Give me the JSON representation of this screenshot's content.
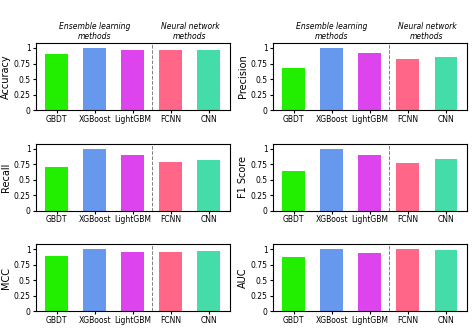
{
  "chart_data": [
    {
      "type": "bar",
      "ylabel": "Accuracy",
      "categories": [
        "GBDT",
        "XGBoost",
        "LightGBM",
        "FCNN",
        "CNN"
      ],
      "values": [
        0.91,
        1.0,
        0.97,
        0.96,
        0.97
      ],
      "colors": [
        "#22ee00",
        "#6699ee",
        "#dd44ee",
        "#ff6688",
        "#44ddaa"
      ],
      "ylim": [
        0,
        1.08
      ],
      "yticks": [
        0,
        0.25,
        0.5,
        0.75,
        1
      ],
      "annotations": [
        "Ensemble learning\nmethods",
        "Neural network\nmethods"
      ]
    },
    {
      "type": "bar",
      "ylabel": "Precision",
      "categories": [
        "GBDT",
        "XGBoost",
        "LightGBM",
        "FCNN",
        "CNN"
      ],
      "values": [
        0.67,
        1.0,
        0.92,
        0.82,
        0.86
      ],
      "colors": [
        "#22ee00",
        "#6699ee",
        "#dd44ee",
        "#ff6688",
        "#44ddaa"
      ],
      "ylim": [
        0,
        1.08
      ],
      "yticks": [
        0,
        0.25,
        0.5,
        0.75,
        1
      ],
      "annotations": [
        "Ensemble learning\nmethods",
        "Neural network\nmethods"
      ]
    },
    {
      "type": "bar",
      "ylabel": "Recall",
      "categories": [
        "GBDT",
        "XGBoost",
        "LightGBM",
        "FCNN",
        "CNN"
      ],
      "values": [
        0.71,
        1.0,
        0.89,
        0.78,
        0.82
      ],
      "colors": [
        "#22ee00",
        "#6699ee",
        "#dd44ee",
        "#ff6688",
        "#44ddaa"
      ],
      "ylim": [
        0,
        1.08
      ],
      "yticks": [
        0,
        0.25,
        0.5,
        0.75,
        1
      ]
    },
    {
      "type": "bar",
      "ylabel": "F1 Score",
      "categories": [
        "GBDT",
        "XGBoost",
        "LightGBM",
        "FCNN",
        "CNN"
      ],
      "values": [
        0.64,
        1.0,
        0.89,
        0.77,
        0.83
      ],
      "colors": [
        "#22ee00",
        "#6699ee",
        "#dd44ee",
        "#ff6688",
        "#44ddaa"
      ],
      "ylim": [
        0,
        1.08
      ],
      "yticks": [
        0,
        0.25,
        0.5,
        0.75,
        1
      ]
    },
    {
      "type": "bar",
      "ylabel": "MCC",
      "categories": [
        "GBDT",
        "XGBoost",
        "LightGBM",
        "FCNN",
        "CNN"
      ],
      "values": [
        0.89,
        1.0,
        0.95,
        0.95,
        0.97
      ],
      "colors": [
        "#22ee00",
        "#6699ee",
        "#dd44ee",
        "#ff6688",
        "#44ddaa"
      ],
      "ylim": [
        0,
        1.08
      ],
      "yticks": [
        0,
        0.25,
        0.5,
        0.75,
        1
      ]
    },
    {
      "type": "bar",
      "ylabel": "AUC",
      "categories": [
        "GBDT",
        "XGBoost",
        "LightGBM",
        "FCNN",
        "CNN"
      ],
      "values": [
        0.88,
        1.0,
        0.94,
        1.0,
        0.99
      ],
      "colors": [
        "#22ee00",
        "#6699ee",
        "#dd44ee",
        "#ff6688",
        "#44ddaa"
      ],
      "ylim": [
        0,
        1.08
      ],
      "yticks": [
        0,
        0.25,
        0.5,
        0.75,
        1
      ]
    }
  ]
}
